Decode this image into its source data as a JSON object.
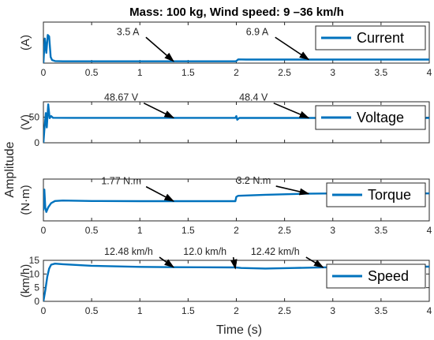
{
  "chart_data": {
    "type": "line",
    "title": "Mass: 100 kg, Wind speed: 9 –36 km/h",
    "xlabel": "Time (s)",
    "common_ylabel": "Amplitude",
    "xlim": [
      0,
      4
    ],
    "xticks": [
      "0",
      "0.5",
      "1",
      "1.5",
      "2",
      "2.5",
      "3",
      "3.5",
      "4"
    ],
    "subplots": [
      {
        "ylabel": "(A)",
        "legend": "Current",
        "ylim": [
          0,
          80
        ],
        "yticks": [],
        "show_xticks": true,
        "points": [
          [
            0,
            0
          ],
          [
            0.015,
            48
          ],
          [
            0.03,
            20
          ],
          [
            0.045,
            55
          ],
          [
            0.06,
            52
          ],
          [
            0.075,
            12
          ],
          [
            0.09,
            6
          ],
          [
            0.12,
            4
          ],
          [
            0.2,
            3.6
          ],
          [
            0.5,
            3.5
          ],
          [
            1.0,
            3.5
          ],
          [
            1.5,
            3.5
          ],
          [
            1.99,
            3.5
          ],
          [
            2.0,
            4
          ],
          [
            2.02,
            7.2
          ],
          [
            2.1,
            6.9
          ],
          [
            2.5,
            6.9
          ],
          [
            3.0,
            6.9
          ],
          [
            3.5,
            6.9
          ],
          [
            4.0,
            6.9
          ]
        ],
        "annotations": [
          {
            "text": "3.5 A",
            "at": [
              1.35,
              3.5
            ],
            "label_at": [
              0.76,
              55
            ]
          },
          {
            "text": "6.9 A",
            "at": [
              2.75,
              6.9
            ],
            "label_at": [
              2.1,
              55
            ]
          }
        ]
      },
      {
        "ylabel": "(V)",
        "legend": "Voltage",
        "ylim": [
          0,
          80
        ],
        "yticks": [
          "0",
          "50"
        ],
        "show_xticks": false,
        "points": [
          [
            0,
            0
          ],
          [
            0.01,
            25
          ],
          [
            0.025,
            58
          ],
          [
            0.035,
            30
          ],
          [
            0.05,
            75
          ],
          [
            0.065,
            48
          ],
          [
            0.08,
            52
          ],
          [
            0.1,
            48.8
          ],
          [
            0.3,
            48.67
          ],
          [
            1.0,
            48.67
          ],
          [
            1.99,
            48.67
          ],
          [
            2.0,
            52
          ],
          [
            2.01,
            45
          ],
          [
            2.03,
            48.4
          ],
          [
            2.5,
            48.4
          ],
          [
            3.0,
            48.4
          ],
          [
            3.5,
            48.4
          ],
          [
            4.0,
            48.4
          ]
        ],
        "annotations": [
          {
            "text": "48.67 V",
            "at": [
              1.35,
              48.67
            ],
            "label_at": [
              0.63,
              82
            ]
          },
          {
            "text": "48.4 V",
            "at": [
              2.75,
              48.4
            ],
            "label_at": [
              2.03,
              82
            ]
          }
        ]
      },
      {
        "ylabel": "(N·m)",
        "legend": "Torque",
        "ylim": [
          -2,
          6
        ],
        "yticks": [],
        "show_xticks": true,
        "points": [
          [
            0,
            0
          ],
          [
            0.01,
            4.0
          ],
          [
            0.02,
            0.5
          ],
          [
            0.03,
            -0.3
          ],
          [
            0.05,
            0.6
          ],
          [
            0.08,
            1.4
          ],
          [
            0.12,
            1.8
          ],
          [
            0.2,
            1.9
          ],
          [
            0.5,
            1.8
          ],
          [
            1.0,
            1.77
          ],
          [
            1.5,
            1.77
          ],
          [
            1.99,
            1.77
          ],
          [
            2.0,
            2.6
          ],
          [
            2.02,
            2.8
          ],
          [
            2.3,
            3.0
          ],
          [
            2.7,
            3.2
          ],
          [
            3.0,
            3.25
          ],
          [
            3.5,
            3.25
          ],
          [
            4.0,
            3.25
          ]
        ],
        "annotations": [
          {
            "text": "1.77 N.m",
            "at": [
              1.35,
              1.77
            ],
            "label_at": [
              0.6,
              5.0
            ]
          },
          {
            "text": "3.2 N.m",
            "at": [
              2.75,
              3.2
            ],
            "label_at": [
              2.0,
              5.1
            ]
          }
        ]
      },
      {
        "ylabel": "(km/h)",
        "legend": "Speed",
        "ylim": [
          0,
          15
        ],
        "yticks": [
          "0",
          "5",
          "10",
          "15"
        ],
        "show_xticks": true,
        "points": [
          [
            0,
            0
          ],
          [
            0.02,
            4
          ],
          [
            0.04,
            9
          ],
          [
            0.06,
            12
          ],
          [
            0.08,
            13.4
          ],
          [
            0.12,
            13.8
          ],
          [
            0.2,
            13.6
          ],
          [
            0.5,
            13.0
          ],
          [
            1.0,
            12.6
          ],
          [
            1.35,
            12.48
          ],
          [
            1.99,
            12.4
          ],
          [
            2.05,
            12.2
          ],
          [
            2.3,
            12.0
          ],
          [
            2.6,
            12.2
          ],
          [
            2.9,
            12.42
          ],
          [
            3.5,
            12.6
          ],
          [
            4.0,
            12.7
          ]
        ],
        "annotations": [
          {
            "text": "12.48 km/h",
            "at": [
              1.35,
              12.48
            ],
            "label_at": [
              0.63,
              17.0
            ]
          },
          {
            "text": "12.0 km/h",
            "at": [
              1.99,
              12.0
            ],
            "label_at": [
              1.45,
              17.0
            ]
          },
          {
            "text": "12.42 km/h",
            "at": [
              2.9,
              12.42
            ],
            "label_at": [
              2.15,
              17.0
            ]
          }
        ]
      }
    ]
  },
  "colors": {
    "line": "#0072BD",
    "axis": "#262626",
    "arrow": "#000000"
  }
}
